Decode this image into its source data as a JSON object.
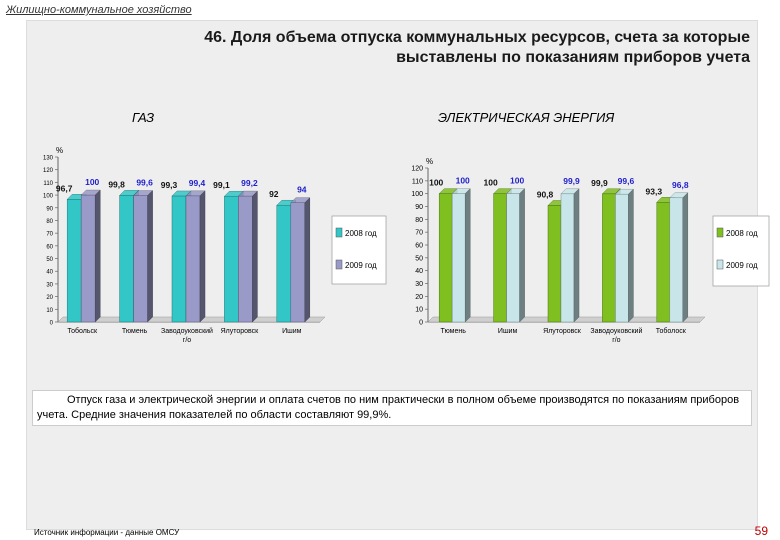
{
  "header": {
    "section": "Жилищно-коммунальное хозяйство",
    "title_line1": "46. Доля объема отпуска коммунальных ресурсов, счета за которые",
    "title_line2": "выставлены по показаниям приборов учета"
  },
  "note": "Отпуск газа и электрической энергии и оплата счетов по ним практически в полном объеме производятся по показаниям приборов учета. Средние значения показателей по области составляют 99,9%.",
  "footer": {
    "source": "Источник информации - данные ОМСУ",
    "page": "59"
  },
  "colors": {
    "gas2008": "#33c6c6",
    "gas2009": "#9a9ac8",
    "el2008": "#7fbf1f",
    "el2009": "#c8e6ea",
    "value2009": "#1f1fcc"
  },
  "chart_data": [
    {
      "type": "bar",
      "title": "ГАЗ",
      "ylabel": "%",
      "ylim": [
        0,
        130
      ],
      "yticks": [
        0,
        10,
        20,
        30,
        40,
        50,
        60,
        70,
        80,
        90,
        100,
        110,
        120,
        130
      ],
      "categories": [
        "Тобольск",
        "Тюмень",
        "Заводоуковский г/о",
        "Ялуторовск",
        "Ишим"
      ],
      "series": [
        {
          "name": "2008 год",
          "values": [
            96.7,
            99.8,
            99.3,
            99.1,
            92
          ],
          "labels": [
            "96,7",
            "99,8",
            "99,3",
            "99,1",
            "92"
          ]
        },
        {
          "name": "2009 год",
          "values": [
            100,
            99.6,
            99.4,
            99.2,
            94
          ],
          "labels": [
            "100",
            "99,6",
            "99,4",
            "99,2",
            "94"
          ]
        }
      ],
      "legend": "right"
    },
    {
      "type": "bar",
      "title": "ЭЛЕКТРИЧЕСКАЯ ЭНЕРГИЯ",
      "ylabel": "%",
      "ylim": [
        0,
        120
      ],
      "yticks": [
        0,
        10,
        20,
        30,
        40,
        50,
        60,
        70,
        80,
        90,
        100,
        110,
        120
      ],
      "categories": [
        "Тюмень",
        "Ишим",
        "Ялуторовск",
        "Заводоуковский г/о",
        "Тоболоск"
      ],
      "series": [
        {
          "name": "2008 год",
          "values": [
            100,
            100,
            90.8,
            99.9,
            93.3
          ],
          "labels": [
            "100",
            "100",
            "90,8",
            "99,9",
            "93,3"
          ]
        },
        {
          "name": "2009 год",
          "values": [
            100,
            100,
            99.9,
            99.6,
            96.8
          ],
          "labels": [
            "100",
            "100",
            "99,9",
            "99,6",
            "96,8"
          ]
        }
      ],
      "legend": "right"
    }
  ]
}
